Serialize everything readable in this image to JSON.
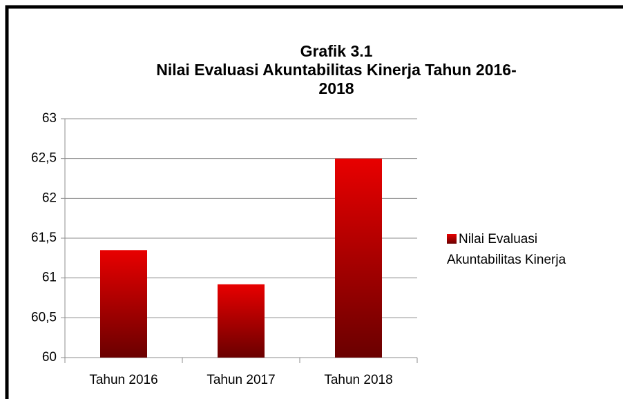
{
  "chart_data": {
    "type": "bar",
    "title": [
      "Grafik 3.1",
      "Nilai Evaluasi Akuntabilitas Kinerja Tahun 2016-",
      "2018"
    ],
    "categories": [
      "Tahun 2016",
      "Tahun 2017",
      "Tahun 2018"
    ],
    "series": [
      {
        "name": "Nilai Evaluasi Akuntabilitas Kinerja",
        "color": [
          "#e80000",
          "#6a0000"
        ],
        "values": [
          61.35,
          60.92,
          62.5
        ]
      }
    ],
    "ylim": [
      60,
      63
    ],
    "yticks": [
      60,
      {
        "value": 60.5,
        "label": "60,5"
      },
      61,
      {
        "value": 61.5,
        "label": "61,5"
      },
      62,
      {
        "value": 62.5,
        "label": "62,5"
      },
      63
    ],
    "grid": true,
    "legend": "right"
  }
}
